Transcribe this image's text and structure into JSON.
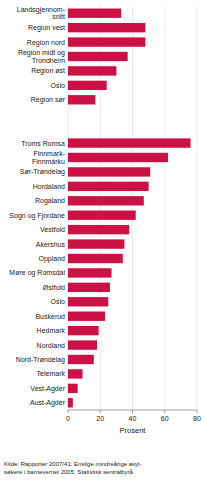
{
  "chart_data": {
    "type": "bar",
    "orientation": "horizontal",
    "categories": [
      "Landsgjennom-\nsnitt",
      "Region vest",
      "Region nord",
      "Region midt og\nTrondheim",
      "Region øst",
      "Oslo",
      "Region sør",
      null,
      null,
      "Troms Romsa",
      "Finnmark-\nFinnmárku",
      "Sør-Trøndelag",
      "Hordaland",
      "Rogaland",
      "Sogn og Fjordane",
      "Vestfold",
      "Akershus",
      "Oppland",
      "Møre og Romsdal",
      "Østfold",
      "Oslo",
      "Buskerud",
      "Hedmark",
      "Nordland",
      "Nord-Trøndelag",
      "Telemark",
      "Vest-Agder",
      "Aust-Agder"
    ],
    "values": [
      33,
      48,
      48,
      37,
      30,
      24,
      17,
      null,
      null,
      76,
      62,
      51,
      50,
      47,
      42,
      38,
      35,
      34,
      27,
      26,
      25,
      23,
      19,
      18,
      16,
      9,
      6,
      3
    ],
    "color": "#cc1144",
    "xlabel": "Prosent",
    "xlim": [
      0,
      80
    ],
    "xticks": [
      0,
      20,
      40,
      60,
      80
    ],
    "grid": true,
    "footnote": "Kilde: Rapporter 2007/41: Enslige mindreårige asyl-\nsøkere i barnevernet 2005, Statistisk sentralbyrå."
  }
}
